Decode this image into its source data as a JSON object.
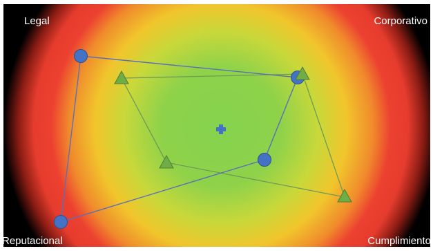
{
  "labels": {
    "top_left": "Legal",
    "top_right": "Corporativo",
    "bottom_left": "Reputacional",
    "bottom_right": "Cumplimiento"
  },
  "colors": {
    "background": "#000000",
    "heat_center": "#8bd24c",
    "heat_mid": "#e8d22a",
    "heat_outer": "#ef3e2b",
    "circle_series": "#4472c4",
    "triangle_series": "#70ad47",
    "center_marker": "#4472c4"
  },
  "center_marker": {
    "icon": "plus-icon"
  }
}
